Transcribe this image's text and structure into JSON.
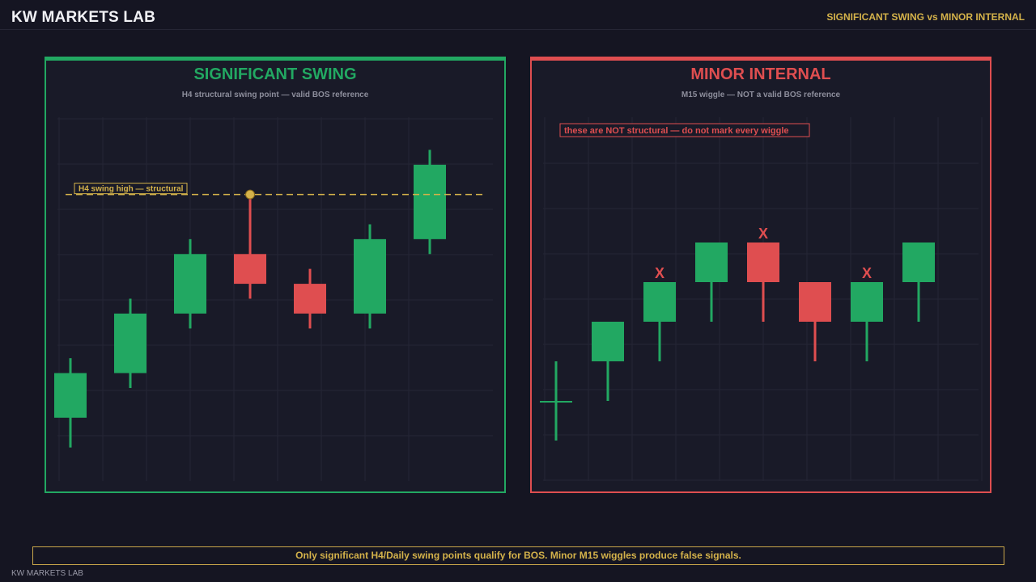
{
  "header": {
    "brand": "KW MARKETS LAB",
    "right_title": "SIGNIFICANT SWING vs MINOR INTERNAL"
  },
  "colors": {
    "bull": "#22a862",
    "bear": "#df4e50",
    "gold": "#d4b24a",
    "grid": "#252636",
    "background": "#151522"
  },
  "chart_data": [
    {
      "type": "candlestick",
      "title": "SIGNIFICANT SWING",
      "subtitle": "H4 structural swing point — valid BOS reference",
      "grid": true,
      "ylim": [
        0,
        22
      ],
      "candles": [
        {
          "open": 3.0,
          "high": 7.0,
          "low": 1.0,
          "close": 6.0
        },
        {
          "open": 6.0,
          "high": 11.0,
          "low": 5.0,
          "close": 10.0
        },
        {
          "open": 10.0,
          "high": 15.0,
          "low": 9.0,
          "close": 14.0
        },
        {
          "open": 14.0,
          "high": 18.0,
          "low": 11.0,
          "close": 12.0
        },
        {
          "open": 12.0,
          "high": 13.0,
          "low": 9.0,
          "close": 10.0
        },
        {
          "open": 10.0,
          "high": 16.0,
          "low": 9.0,
          "close": 15.0
        },
        {
          "open": 15.0,
          "high": 21.0,
          "low": 14.0,
          "close": 20.0
        }
      ],
      "swing_high": {
        "candle_index": 3,
        "price": 18.0,
        "label": "H4 swing high — structural"
      }
    },
    {
      "type": "candlestick",
      "title": "MINOR INTERNAL",
      "subtitle": "M15 wiggle — NOT a valid BOS reference",
      "grid": true,
      "ylim": [
        0,
        8
      ],
      "note": "these are NOT structural — do not mark every wiggle",
      "marker_text": "X",
      "candles": [
        {
          "open": 2.0,
          "high": 3.0,
          "low": 1.0,
          "close": 2.0
        },
        {
          "open": 3.0,
          "high": 4.0,
          "low": 2.0,
          "close": 4.0
        },
        {
          "open": 4.0,
          "high": 5.0,
          "low": 3.0,
          "close": 5.0
        },
        {
          "open": 5.0,
          "high": 6.0,
          "low": 4.0,
          "close": 6.0
        },
        {
          "open": 6.0,
          "high": 6.0,
          "low": 4.0,
          "close": 5.0
        },
        {
          "open": 5.0,
          "high": 5.0,
          "low": 3.0,
          "close": 4.0
        },
        {
          "open": 4.0,
          "high": 5.0,
          "low": 3.0,
          "close": 5.0
        },
        {
          "open": 5.0,
          "high": 6.0,
          "low": 4.0,
          "close": 6.0
        }
      ],
      "marked_candles": [
        2,
        4,
        6
      ]
    }
  ],
  "footer": {
    "message": "Only significant H4/Daily swing points qualify for BOS. Minor M15 wiggles produce false signals.",
    "brand": "KW MARKETS LAB"
  }
}
